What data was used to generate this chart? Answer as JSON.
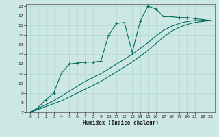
{
  "xlabel": "Humidex (Indice chaleur)",
  "bg_color": "#cde8e4",
  "line_color": "#006b5e",
  "grid_color": "#b0d8d0",
  "xlim": [
    -0.5,
    23.5
  ],
  "ylim": [
    7,
    18.2
  ],
  "xticks": [
    0,
    1,
    2,
    3,
    4,
    5,
    6,
    7,
    8,
    9,
    10,
    11,
    12,
    13,
    14,
    15,
    16,
    17,
    18,
    19,
    20,
    21,
    22,
    23
  ],
  "yticks": [
    7,
    8,
    9,
    10,
    11,
    12,
    13,
    14,
    15,
    16,
    17,
    18
  ],
  "line1_x": [
    0,
    1,
    2,
    3,
    4,
    5,
    6,
    7,
    8,
    9,
    10,
    11,
    12,
    13,
    14,
    15,
    16,
    17,
    18,
    19,
    20,
    21,
    22,
    23
  ],
  "line1_y": [
    7.0,
    7.5,
    8.3,
    9.0,
    11.1,
    12.0,
    12.1,
    12.2,
    12.2,
    12.3,
    15.0,
    16.2,
    16.3,
    13.2,
    16.4,
    18.0,
    17.7,
    16.9,
    16.9,
    16.8,
    16.8,
    16.7,
    16.6,
    16.5
  ],
  "line2_x": [
    0,
    1,
    2,
    3,
    4,
    5,
    6,
    7,
    8,
    9,
    10,
    11,
    12,
    13,
    14,
    15,
    16,
    17,
    18,
    19,
    20,
    21,
    22,
    23
  ],
  "line2_y": [
    7.0,
    7.3,
    7.6,
    7.9,
    8.2,
    8.6,
    9.0,
    9.4,
    9.8,
    10.2,
    10.7,
    11.2,
    11.7,
    12.2,
    12.8,
    13.4,
    14.1,
    14.8,
    15.4,
    15.8,
    16.1,
    16.3,
    16.4,
    16.5
  ],
  "line3_x": [
    0,
    1,
    2,
    3,
    4,
    5,
    6,
    7,
    8,
    9,
    10,
    11,
    12,
    13,
    14,
    15,
    16,
    17,
    18,
    19,
    20,
    21,
    22,
    23
  ],
  "line3_y": [
    7.0,
    7.4,
    7.8,
    8.2,
    8.7,
    9.2,
    9.7,
    10.2,
    10.6,
    11.0,
    11.5,
    12.0,
    12.5,
    13.0,
    13.6,
    14.2,
    14.9,
    15.5,
    15.9,
    16.2,
    16.4,
    16.5,
    16.5,
    16.5
  ]
}
